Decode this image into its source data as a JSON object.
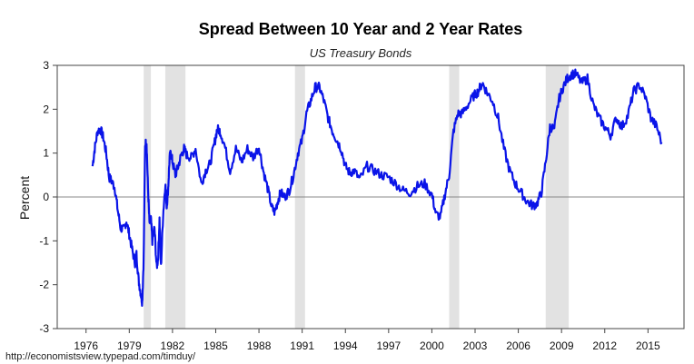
{
  "chart_data": {
    "type": "line",
    "title": "Spread Between 10 Year and 2 Year Rates",
    "subtitle": "US Treasury Bonds",
    "xlabel": "",
    "ylabel": "Percent",
    "xlim": [
      1974.0,
      2017.5
    ],
    "ylim": [
      -3,
      3
    ],
    "x_ticks": [
      1976,
      1979,
      1982,
      1985,
      1988,
      1991,
      1994,
      1997,
      2000,
      2003,
      2006,
      2009,
      2012,
      2015
    ],
    "y_ticks": [
      -3,
      -2,
      -1,
      0,
      1,
      2,
      3
    ],
    "zero_line": true,
    "grid": false,
    "source": "http://economistsview.typepad.com/timduy/",
    "line_color": "#0a14e8",
    "recession_color": "#e2e2e2",
    "recessions": [
      {
        "start": 1980.0,
        "end": 1980.5
      },
      {
        "start": 1981.5,
        "end": 1982.9
      },
      {
        "start": 1990.5,
        "end": 1991.2
      },
      {
        "start": 2001.2,
        "end": 2001.9
      },
      {
        "start": 2007.9,
        "end": 2009.5
      }
    ],
    "series": [
      {
        "x": [
          1976.45,
          1976.6,
          1976.8,
          1977.0,
          1977.2,
          1977.4,
          1977.6,
          1977.8,
          1978.0,
          1978.2,
          1978.4,
          1978.6,
          1978.8,
          1979.0,
          1979.2,
          1979.4,
          1979.5,
          1979.65,
          1979.8,
          1979.9,
          1980.0,
          1980.1,
          1980.2,
          1980.3,
          1980.4,
          1980.5,
          1980.6,
          1980.75,
          1980.9,
          1981.0,
          1981.1,
          1981.2,
          1981.35,
          1981.5,
          1981.6,
          1981.7,
          1981.8,
          1981.9,
          1982.0,
          1982.2,
          1982.4,
          1982.6,
          1982.8,
          1983.0,
          1983.3,
          1983.6,
          1984.0,
          1984.3,
          1984.6,
          1984.9,
          1985.1,
          1985.3,
          1985.6,
          1986.0,
          1986.4,
          1986.8,
          1987.2,
          1987.6,
          1988.0,
          1988.3,
          1988.6,
          1988.9,
          1989.1,
          1989.3,
          1989.5,
          1989.8,
          1990.1,
          1990.4,
          1990.7,
          1991.0,
          1991.3,
          1991.6,
          1991.9,
          1992.2,
          1992.5,
          1992.8,
          1993.1,
          1993.4,
          1993.7,
          1994.0,
          1994.3,
          1994.6,
          1995.0,
          1995.5,
          1996.0,
          1996.5,
          1997.0,
          1997.5,
          1998.0,
          1998.5,
          1999.0,
          1999.5,
          2000.0,
          2000.3,
          2000.6,
          2000.9,
          2001.2,
          2001.5,
          2001.8,
          2002.1,
          2002.5,
          2002.9,
          2003.2,
          2003.5,
          2003.8,
          2004.2,
          2004.6,
          2005.0,
          2005.4,
          2005.8,
          2006.2,
          2006.6,
          2007.0,
          2007.3,
          2007.6,
          2007.9,
          2008.2,
          2008.5,
          2008.8,
          2009.1,
          2009.4,
          2009.7,
          2010.0,
          2010.4,
          2010.8,
          2011.2,
          2011.6,
          2012.0,
          2012.4,
          2012.8,
          2013.2,
          2013.6,
          2014.0,
          2014.4,
          2014.8,
          2015.2,
          2015.6,
          2015.95
        ],
        "values": [
          0.7,
          1.1,
          1.5,
          1.55,
          1.35,
          1.0,
          0.45,
          0.35,
          0.2,
          -0.3,
          -0.7,
          -0.75,
          -0.55,
          -0.85,
          -1.2,
          -1.5,
          -1.3,
          -1.9,
          -2.2,
          -2.4,
          -1.4,
          1.2,
          1.25,
          0.2,
          -0.6,
          -0.5,
          -1.0,
          -0.7,
          -1.6,
          -1.4,
          -0.5,
          -1.6,
          -0.4,
          0.3,
          -0.2,
          0.2,
          0.9,
          1.0,
          0.8,
          0.5,
          0.7,
          0.95,
          1.1,
          0.95,
          0.9,
          1.1,
          0.3,
          0.6,
          0.75,
          1.2,
          1.55,
          1.5,
          1.2,
          0.6,
          1.1,
          0.8,
          1.1,
          0.9,
          1.15,
          0.6,
          0.2,
          -0.25,
          -0.35,
          -0.1,
          0.1,
          0.0,
          0.15,
          0.5,
          1.0,
          1.3,
          1.9,
          2.2,
          2.5,
          2.5,
          2.2,
          1.8,
          1.5,
          1.3,
          1.1,
          0.7,
          0.55,
          0.6,
          0.4,
          0.7,
          0.6,
          0.5,
          0.45,
          0.3,
          0.15,
          0.1,
          0.25,
          0.3,
          0.05,
          -0.4,
          -0.45,
          0.05,
          0.5,
          1.5,
          1.9,
          1.9,
          2.1,
          2.3,
          2.4,
          2.6,
          2.4,
          2.2,
          1.8,
          1.1,
          0.6,
          0.3,
          0.1,
          -0.1,
          -0.2,
          -0.15,
          0.1,
          0.8,
          1.6,
          1.55,
          2.2,
          2.5,
          2.7,
          2.8,
          2.8,
          2.6,
          2.7,
          2.1,
          1.8,
          1.6,
          1.4,
          1.8,
          1.6,
          1.85,
          2.4,
          2.55,
          2.3,
          1.8,
          1.6,
          1.25
        ]
      }
    ]
  }
}
